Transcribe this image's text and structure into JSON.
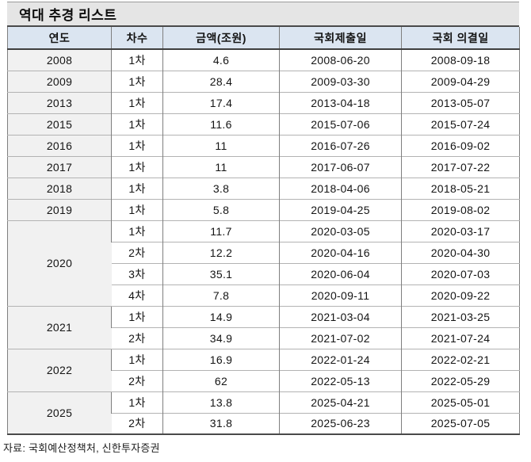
{
  "title": "역대 추경 리스트",
  "source_note": "자료: 국회예산정책처, 신한투자증권",
  "colors": {
    "header_bg": "#dbe5f1",
    "year_column_bg": "#f1f1f1",
    "title_band_bg": "#e5e5e5",
    "border_dark": "#4a4a4a",
    "border_mid": "#7f7f7f",
    "border_light": "#b3b3b3",
    "text": "#141414"
  },
  "table": {
    "columns": [
      "연도",
      "차수",
      "금액(조원)",
      "국회제출일",
      "국회 의결일"
    ],
    "groups": [
      {
        "year": "2008",
        "rows": [
          {
            "round": "1차",
            "amount": "4.6",
            "submitted": "2008-06-20",
            "resolved": "2008-09-18"
          }
        ]
      },
      {
        "year": "2009",
        "rows": [
          {
            "round": "1차",
            "amount": "28.4",
            "submitted": "2009-03-30",
            "resolved": "2009-04-29"
          }
        ]
      },
      {
        "year": "2013",
        "rows": [
          {
            "round": "1차",
            "amount": "17.4",
            "submitted": "2013-04-18",
            "resolved": "2013-05-07"
          }
        ]
      },
      {
        "year": "2015",
        "rows": [
          {
            "round": "1차",
            "amount": "11.6",
            "submitted": "2015-07-06",
            "resolved": "2015-07-24"
          }
        ]
      },
      {
        "year": "2016",
        "rows": [
          {
            "round": "1차",
            "amount": "11",
            "submitted": "2016-07-26",
            "resolved": "2016-09-02"
          }
        ]
      },
      {
        "year": "2017",
        "rows": [
          {
            "round": "1차",
            "amount": "11",
            "submitted": "2017-06-07",
            "resolved": "2017-07-22"
          }
        ]
      },
      {
        "year": "2018",
        "rows": [
          {
            "round": "1차",
            "amount": "3.8",
            "submitted": "2018-04-06",
            "resolved": "2018-05-21"
          }
        ]
      },
      {
        "year": "2019",
        "rows": [
          {
            "round": "1차",
            "amount": "5.8",
            "submitted": "2019-04-25",
            "resolved": "2019-08-02"
          }
        ]
      },
      {
        "year": "2020",
        "rows": [
          {
            "round": "1차",
            "amount": "11.7",
            "submitted": "2020-03-05",
            "resolved": "2020-03-17"
          },
          {
            "round": "2차",
            "amount": "12.2",
            "submitted": "2020-04-16",
            "resolved": "2020-04-30"
          },
          {
            "round": "3차",
            "amount": "35.1",
            "submitted": "2020-06-04",
            "resolved": "2020-07-03"
          },
          {
            "round": "4차",
            "amount": "7.8",
            "submitted": "2020-09-11",
            "resolved": "2020-09-22"
          }
        ]
      },
      {
        "year": "2021",
        "rows": [
          {
            "round": "1차",
            "amount": "14.9",
            "submitted": "2021-03-04",
            "resolved": "2021-03-25"
          },
          {
            "round": "2차",
            "amount": "34.9",
            "submitted": "2021-07-02",
            "resolved": "2021-07-24"
          }
        ]
      },
      {
        "year": "2022",
        "rows": [
          {
            "round": "1차",
            "amount": "16.9",
            "submitted": "2022-01-24",
            "resolved": "2022-02-21"
          },
          {
            "round": "2차",
            "amount": "62",
            "submitted": "2022-05-13",
            "resolved": "2022-05-29"
          }
        ]
      },
      {
        "year": "2025",
        "rows": [
          {
            "round": "1차",
            "amount": "13.8",
            "submitted": "2025-04-21",
            "resolved": "2025-05-01"
          },
          {
            "round": "2차",
            "amount": "31.8",
            "submitted": "2025-06-23",
            "resolved": "2025-07-05"
          }
        ]
      }
    ]
  }
}
